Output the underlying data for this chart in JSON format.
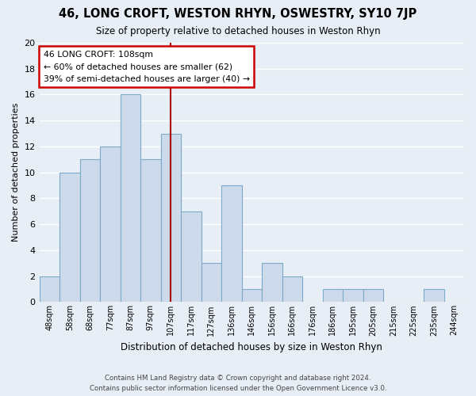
{
  "title": "46, LONG CROFT, WESTON RHYN, OSWESTRY, SY10 7JP",
  "subtitle": "Size of property relative to detached houses in Weston Rhyn",
  "xlabel": "Distribution of detached houses by size in Weston Rhyn",
  "ylabel": "Number of detached properties",
  "footer_line1": "Contains HM Land Registry data © Crown copyright and database right 2024.",
  "footer_line2": "Contains public sector information licensed under the Open Government Licence v3.0.",
  "bin_labels": [
    "48sqm",
    "58sqm",
    "68sqm",
    "77sqm",
    "87sqm",
    "97sqm",
    "107sqm",
    "117sqm",
    "127sqm",
    "136sqm",
    "146sqm",
    "156sqm",
    "166sqm",
    "176sqm",
    "186sqm",
    "195sqm",
    "205sqm",
    "215sqm",
    "225sqm",
    "235sqm",
    "244sqm"
  ],
  "bar_heights": [
    2,
    10,
    11,
    12,
    16,
    11,
    13,
    7,
    3,
    9,
    1,
    3,
    2,
    0,
    1,
    1,
    1,
    0,
    0,
    1,
    0
  ],
  "bar_color": "#cddaeb",
  "bar_edge_color": "#7aaac8",
  "ylim": [
    0,
    20
  ],
  "yticks": [
    0,
    2,
    4,
    6,
    8,
    10,
    12,
    14,
    16,
    18,
    20
  ],
  "vline_x": 6,
  "vline_color": "#aa0000",
  "annotation_title": "46 LONG CROFT: 108sqm",
  "annotation_line2": "← 60% of detached houses are smaller (62)",
  "annotation_line3": "39% of semi-detached houses are larger (40) →",
  "annotation_box_facecolor": "#ffffff",
  "annotation_box_edgecolor": "#cc0000",
  "bg_color": "#e8eef5",
  "grid_color": "#ffffff",
  "fig_width": 6.0,
  "fig_height": 5.0,
  "fig_dpi": 100
}
